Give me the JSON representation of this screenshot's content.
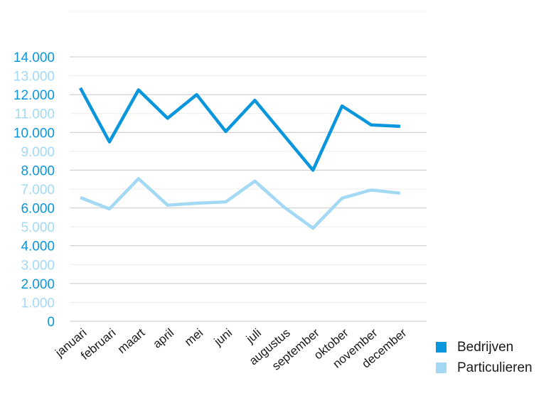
{
  "chart_data": {
    "type": "line",
    "categories": [
      "januari",
      "februari",
      "maart",
      "april",
      "mei",
      "juni",
      "juli",
      "augustus",
      "september",
      "oktober",
      "november",
      "december"
    ],
    "series": [
      {
        "name": "Bedrijven",
        "color": "#0a96dc",
        "values": [
          12350,
          9500,
          12250,
          10750,
          12000,
          10050,
          11700,
          9850,
          8000,
          11400,
          10400,
          10320
        ]
      },
      {
        "name": "Particulieren",
        "color": "#a3d9f5",
        "values": [
          6550,
          5950,
          7550,
          6150,
          6250,
          6320,
          7420,
          6050,
          4930,
          6520,
          6950,
          6780
        ]
      }
    ],
    "ylim": [
      0,
      14000
    ],
    "yticks": [
      "0",
      "1.000",
      "2.000",
      "3.000",
      "4.000",
      "5.000",
      "6.000",
      "7.000",
      "8.000",
      "9.000",
      "10.000",
      "11.000",
      "12.000",
      "13.000",
      "14.000"
    ],
    "tick_colors": {
      "major": "#0a96dc",
      "minor": "#a3d9f5"
    },
    "grid": true,
    "legend_position": "bottom-right"
  }
}
